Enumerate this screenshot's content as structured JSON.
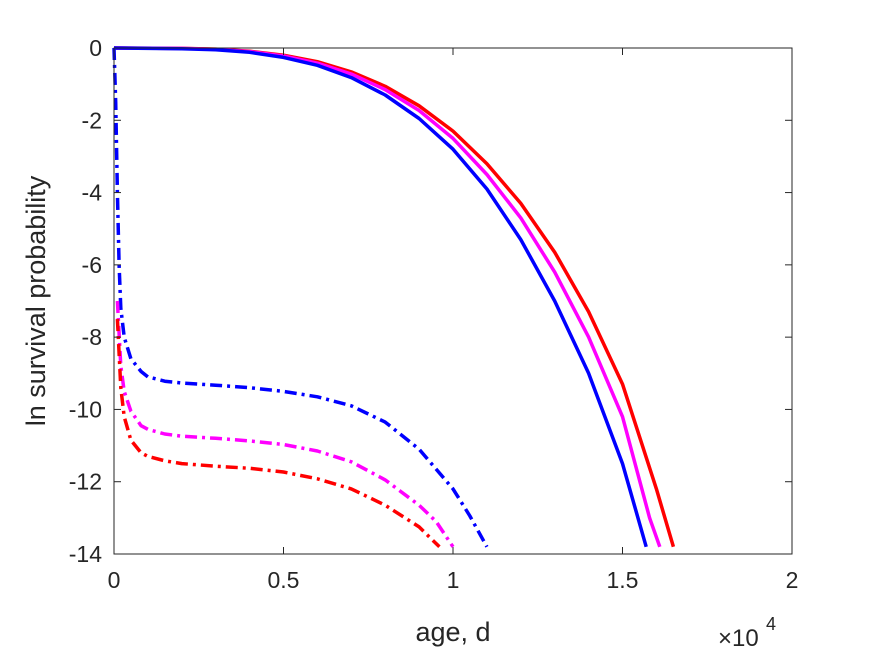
{
  "chart_data": {
    "type": "line",
    "xlabel": "age, d",
    "ylabel": "ln survival probability",
    "x_exponent_label": "×10",
    "x_exponent_power": "4",
    "x_scale": 10000,
    "xlim": [
      0,
      2
    ],
    "ylim": [
      -14,
      0
    ],
    "x_ticks": [
      0,
      0.5,
      1,
      1.5,
      2
    ],
    "x_tick_labels": [
      "0",
      "0.5",
      "1",
      "1.5",
      "2"
    ],
    "y_ticks": [
      0,
      -2,
      -4,
      -6,
      -8,
      -10,
      -12,
      -14
    ],
    "y_tick_labels": [
      "0",
      "-2",
      "-4",
      "-6",
      "-8",
      "-10",
      "-12",
      "-14"
    ],
    "grid": false,
    "legend": "none",
    "series": [
      {
        "color": "#ff0000",
        "style": "solid",
        "points": [
          [
            0,
            0
          ],
          [
            0.2,
            -0.01
          ],
          [
            0.3,
            -0.03
          ],
          [
            0.4,
            -0.09
          ],
          [
            0.5,
            -0.2
          ],
          [
            0.6,
            -0.38
          ],
          [
            0.7,
            -0.66
          ],
          [
            0.8,
            -1.06
          ],
          [
            0.9,
            -1.6
          ],
          [
            1.0,
            -2.3
          ],
          [
            1.1,
            -3.2
          ],
          [
            1.2,
            -4.3
          ],
          [
            1.3,
            -5.65
          ],
          [
            1.4,
            -7.3
          ],
          [
            1.5,
            -9.3
          ],
          [
            1.6,
            -12.2
          ],
          [
            1.65,
            -13.8
          ]
        ]
      },
      {
        "color": "#ff00ff",
        "style": "solid",
        "points": [
          [
            0,
            0
          ],
          [
            0.2,
            -0.01
          ],
          [
            0.3,
            -0.04
          ],
          [
            0.4,
            -0.1
          ],
          [
            0.5,
            -0.22
          ],
          [
            0.6,
            -0.42
          ],
          [
            0.7,
            -0.72
          ],
          [
            0.8,
            -1.15
          ],
          [
            0.9,
            -1.73
          ],
          [
            1.0,
            -2.5
          ],
          [
            1.1,
            -3.5
          ],
          [
            1.2,
            -4.7
          ],
          [
            1.3,
            -6.2
          ],
          [
            1.4,
            -8.0
          ],
          [
            1.5,
            -10.2
          ],
          [
            1.58,
            -13.0
          ],
          [
            1.61,
            -13.8
          ]
        ]
      },
      {
        "color": "#0000ff",
        "style": "solid",
        "points": [
          [
            0,
            0
          ],
          [
            0.2,
            -0.02
          ],
          [
            0.3,
            -0.05
          ],
          [
            0.4,
            -0.12
          ],
          [
            0.5,
            -0.26
          ],
          [
            0.6,
            -0.48
          ],
          [
            0.7,
            -0.82
          ],
          [
            0.8,
            -1.3
          ],
          [
            0.9,
            -1.95
          ],
          [
            1.0,
            -2.8
          ],
          [
            1.1,
            -3.9
          ],
          [
            1.2,
            -5.3
          ],
          [
            1.3,
            -7.0
          ],
          [
            1.4,
            -9.0
          ],
          [
            1.5,
            -11.5
          ],
          [
            1.57,
            -13.8
          ]
        ]
      },
      {
        "color": "#0000ff",
        "style": "dashdot",
        "points": [
          [
            0,
            0
          ],
          [
            0.005,
            -1.5
          ],
          [
            0.01,
            -4.0
          ],
          [
            0.015,
            -6.0
          ],
          [
            0.02,
            -7.2
          ],
          [
            0.03,
            -8.0
          ],
          [
            0.05,
            -8.6
          ],
          [
            0.08,
            -8.95
          ],
          [
            0.1,
            -9.1
          ],
          [
            0.15,
            -9.22
          ],
          [
            0.2,
            -9.27
          ],
          [
            0.3,
            -9.33
          ],
          [
            0.4,
            -9.4
          ],
          [
            0.5,
            -9.5
          ],
          [
            0.6,
            -9.65
          ],
          [
            0.7,
            -9.9
          ],
          [
            0.8,
            -10.35
          ],
          [
            0.9,
            -11.1
          ],
          [
            1.0,
            -12.2
          ],
          [
            1.05,
            -12.95
          ],
          [
            1.1,
            -13.8
          ]
        ]
      },
      {
        "color": "#ff00ff",
        "style": "dashdot",
        "points": [
          [
            0.01,
            -7.0
          ],
          [
            0.02,
            -8.8
          ],
          [
            0.03,
            -9.5
          ],
          [
            0.05,
            -10.05
          ],
          [
            0.08,
            -10.45
          ],
          [
            0.1,
            -10.55
          ],
          [
            0.15,
            -10.68
          ],
          [
            0.2,
            -10.74
          ],
          [
            0.3,
            -10.8
          ],
          [
            0.4,
            -10.87
          ],
          [
            0.5,
            -10.97
          ],
          [
            0.6,
            -11.15
          ],
          [
            0.7,
            -11.45
          ],
          [
            0.8,
            -11.95
          ],
          [
            0.9,
            -12.65
          ],
          [
            0.95,
            -13.1
          ],
          [
            1.0,
            -13.8
          ]
        ]
      },
      {
        "color": "#ff0000",
        "style": "dashdot",
        "points": [
          [
            0.01,
            -7.5
          ],
          [
            0.02,
            -9.4
          ],
          [
            0.03,
            -10.2
          ],
          [
            0.05,
            -10.85
          ],
          [
            0.08,
            -11.2
          ],
          [
            0.1,
            -11.3
          ],
          [
            0.15,
            -11.42
          ],
          [
            0.2,
            -11.5
          ],
          [
            0.3,
            -11.57
          ],
          [
            0.4,
            -11.63
          ],
          [
            0.5,
            -11.73
          ],
          [
            0.6,
            -11.92
          ],
          [
            0.7,
            -12.2
          ],
          [
            0.8,
            -12.65
          ],
          [
            0.9,
            -13.25
          ],
          [
            0.96,
            -13.8
          ]
        ]
      }
    ]
  }
}
